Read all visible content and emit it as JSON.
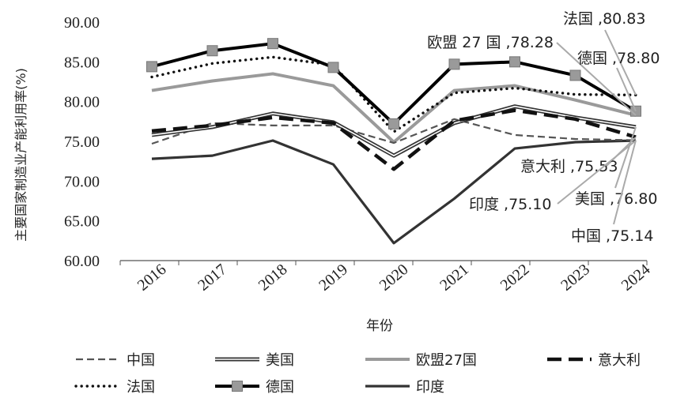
{
  "chart_data": {
    "type": "line",
    "title": "",
    "xlabel": "年份",
    "ylabel": "主要国家制造业产能利用率(%)",
    "ylim": [
      60,
      90
    ],
    "ytick_labels": [
      "60.00",
      "65.00",
      "70.00",
      "75.00",
      "80.00",
      "85.00",
      "90.00"
    ],
    "x": [
      "2016",
      "2017",
      "2018",
      "2019",
      "2020",
      "2021",
      "2022",
      "2023",
      "2024"
    ],
    "grid": false,
    "legend_position": "bottom",
    "series": [
      {
        "name": "中国",
        "color": "#555555",
        "style": "dashed",
        "values": [
          74.7,
          77.3,
          77.0,
          77.0,
          74.8,
          77.8,
          75.8,
          75.3,
          75.14
        ]
      },
      {
        "name": "美国",
        "color": "#333333",
        "style": "double",
        "values": [
          75.8,
          76.8,
          78.5,
          77.4,
          73.2,
          77.3,
          79.4,
          78.0,
          76.8
        ]
      },
      {
        "name": "欧盟27国",
        "color": "#9a9a9a",
        "style": "solid-thick",
        "values": [
          81.4,
          82.6,
          83.5,
          82.0,
          74.9,
          81.4,
          82.0,
          80.2,
          78.28
        ]
      },
      {
        "name": "意大利",
        "color": "#111111",
        "style": "long-dash",
        "values": [
          76.3,
          77.0,
          78.0,
          77.3,
          71.5,
          77.6,
          78.9,
          77.8,
          75.53
        ]
      },
      {
        "name": "法国",
        "color": "#111111",
        "style": "dotted",
        "values": [
          83.1,
          84.8,
          85.6,
          84.6,
          76.2,
          81.1,
          81.7,
          80.9,
          80.83
        ]
      },
      {
        "name": "德国",
        "color": "#000000",
        "style": "solid-square",
        "values": [
          84.4,
          86.4,
          87.3,
          84.3,
          77.2,
          84.7,
          85.0,
          83.3,
          78.8
        ]
      },
      {
        "name": "印度",
        "color": "#333333",
        "style": "solid",
        "values": [
          72.8,
          73.2,
          75.1,
          72.1,
          62.2,
          67.8,
          74.1,
          74.9,
          75.1
        ]
      }
    ],
    "annotations": [
      {
        "series": "法国",
        "text": "法国 ,80.83"
      },
      {
        "series": "欧盟27国",
        "text": "欧盟 27 国 ,78.28"
      },
      {
        "series": "德国",
        "text": "德国 ,78.80"
      },
      {
        "series": "意大利",
        "text": "意大利 ,75.53"
      },
      {
        "series": "印度",
        "text": "印度 ,75.10"
      },
      {
        "series": "美国",
        "text": "美国 ,76.80"
      },
      {
        "series": "中国",
        "text": "中国 ,75.14"
      }
    ]
  }
}
